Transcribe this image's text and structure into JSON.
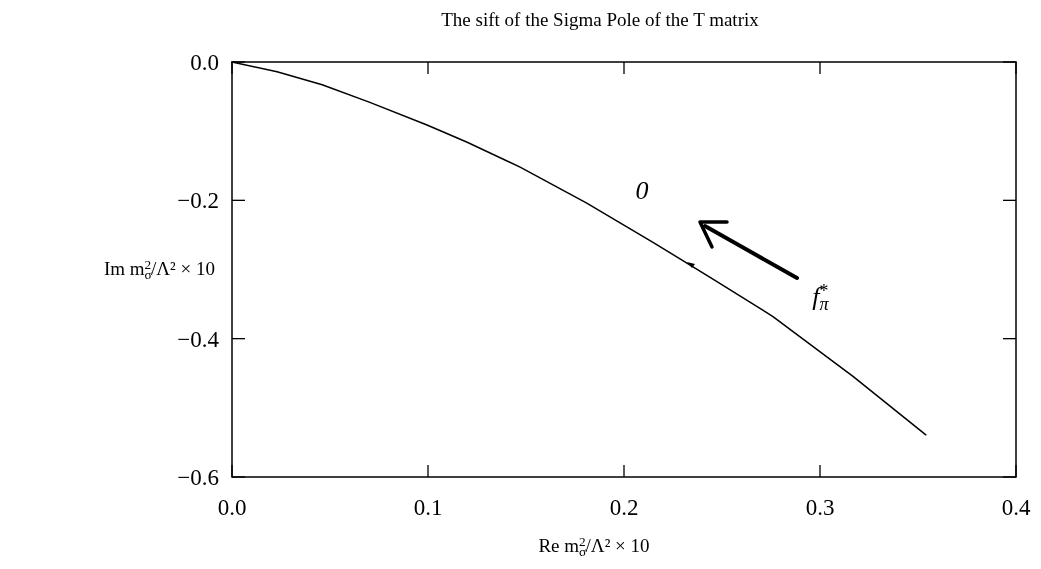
{
  "chart_data": {
    "type": "line",
    "title": "The sift of the Sigma Pole of the T matrix",
    "xlabel": "Re m$_{σ}$$^{2}$/Λ² × 10",
    "ylabel": "Im m$_{σ}$$^{2}$/Λ² × 10",
    "annotations": [
      "0",
      "f$_{π}$$^{*}$"
    ],
    "x": [
      0,
      0.023,
      0.046,
      0.07,
      0.0995,
      0.12,
      0.147,
      0.181,
      0.215,
      0.246,
      0.276,
      0.317,
      0.354
    ],
    "series": [
      {
        "color": "#000000",
        "values": [
          0,
          -0.014,
          -0.033,
          -0.058,
          -0.091,
          -0.116,
          -0.152,
          -0.204,
          -0.261,
          -0.315,
          -0.368,
          -0.455,
          -0.539
        ]
      }
    ],
    "xlim": [
      0,
      0.4
    ],
    "ylim": [
      -0.6,
      0
    ],
    "xticks": [
      {
        "value": 0,
        "label": "0.0"
      },
      0.1,
      0.2,
      0.3,
      0.4
    ],
    "yticks": [
      {
        "value": -0.6,
        "label": "−0.6"
      },
      {
        "value": -0.4,
        "label": "−0.4"
      },
      {
        "value": -0.2,
        "label": "−0.2"
      },
      {
        "value": 0,
        "label": "0.0"
      }
    ]
  }
}
